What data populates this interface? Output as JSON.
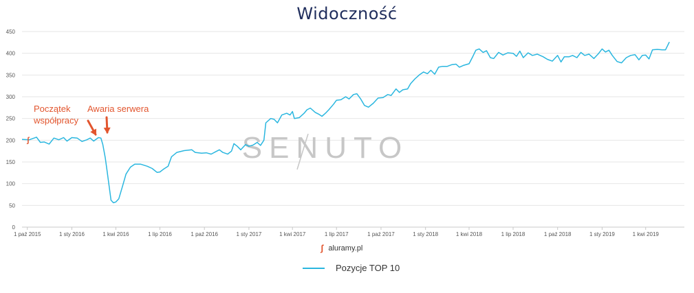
{
  "colors": {
    "series": "#29b6df",
    "grid": "#e6e6e6",
    "annotation": "#e2552e",
    "title": "#1f2d5c",
    "watermark": "#c7c7c7"
  },
  "chart_data": {
    "type": "line",
    "title": "Widoczność",
    "ylim": [
      0,
      450
    ],
    "yticks": [
      0,
      50,
      100,
      150,
      200,
      250,
      300,
      350,
      400,
      450
    ],
    "xlim": [
      "2015-09-20",
      "2019-06-20"
    ],
    "xticks": [
      "1 paź 2015",
      "1 sty 2016",
      "1 kwi 2016",
      "1 lip 2016",
      "1 paź 2016",
      "1 sty 2017",
      "1 kwi 2017",
      "1 lip 2017",
      "1 paź 2017",
      "1 sty 2018",
      "1 kwi 2018",
      "1 lip 2018",
      "1 paź 2018",
      "1 sty 2019",
      "1 kwi 2019"
    ],
    "xtick_dates": [
      "2015-10-01",
      "2016-01-01",
      "2016-04-01",
      "2016-07-01",
      "2016-10-01",
      "2017-01-01",
      "2017-04-01",
      "2017-07-01",
      "2017-10-01",
      "2018-01-01",
      "2018-04-01",
      "2018-07-01",
      "2018-10-01",
      "2019-01-01",
      "2019-04-01"
    ],
    "grid": true,
    "legend_position": "bottom",
    "series": [
      {
        "name": "Pozycje TOP 10",
        "color": "#29b6df",
        "points": [
          [
            "2015-09-20",
            202
          ],
          [
            "2015-10-05",
            201
          ],
          [
            "2015-10-20",
            207
          ],
          [
            "2015-10-28",
            195
          ],
          [
            "2015-11-05",
            196
          ],
          [
            "2015-11-15",
            191
          ],
          [
            "2015-11-25",
            205
          ],
          [
            "2015-12-05",
            201
          ],
          [
            "2015-12-15",
            206
          ],
          [
            "2015-12-22",
            198
          ],
          [
            "2016-01-01",
            206
          ],
          [
            "2016-01-12",
            205
          ],
          [
            "2016-01-22",
            197
          ],
          [
            "2016-02-01",
            201
          ],
          [
            "2016-02-08",
            205
          ],
          [
            "2016-02-15",
            198
          ],
          [
            "2016-02-25",
            206
          ],
          [
            "2016-03-01",
            205
          ],
          [
            "2016-03-05",
            190
          ],
          [
            "2016-03-10",
            160
          ],
          [
            "2016-03-14",
            128
          ],
          [
            "2016-03-18",
            95
          ],
          [
            "2016-03-22",
            62
          ],
          [
            "2016-03-27",
            56
          ],
          [
            "2016-04-01",
            58
          ],
          [
            "2016-04-07",
            65
          ],
          [
            "2016-04-15",
            95
          ],
          [
            "2016-04-22",
            122
          ],
          [
            "2016-05-01",
            138
          ],
          [
            "2016-05-10",
            145
          ],
          [
            "2016-05-22",
            145
          ],
          [
            "2016-06-05",
            140
          ],
          [
            "2016-06-15",
            135
          ],
          [
            "2016-06-25",
            126
          ],
          [
            "2016-07-01",
            127
          ],
          [
            "2016-07-08",
            133
          ],
          [
            "2016-07-18",
            140
          ],
          [
            "2016-07-25",
            162
          ],
          [
            "2016-08-05",
            172
          ],
          [
            "2016-08-20",
            176
          ],
          [
            "2016-09-05",
            178
          ],
          [
            "2016-09-12",
            172
          ],
          [
            "2016-09-25",
            170
          ],
          [
            "2016-10-05",
            171
          ],
          [
            "2016-10-15",
            168
          ],
          [
            "2016-10-25",
            174
          ],
          [
            "2016-11-01",
            178
          ],
          [
            "2016-11-08",
            172
          ],
          [
            "2016-11-18",
            168
          ],
          [
            "2016-11-26",
            175
          ],
          [
            "2016-12-01",
            192
          ],
          [
            "2016-12-08",
            186
          ],
          [
            "2016-12-15",
            178
          ],
          [
            "2016-12-25",
            190
          ],
          [
            "2017-01-01",
            186
          ],
          [
            "2017-01-10",
            189
          ],
          [
            "2017-01-18",
            195
          ],
          [
            "2017-01-25",
            188
          ],
          [
            "2017-02-01",
            200
          ],
          [
            "2017-02-05",
            240
          ],
          [
            "2017-02-15",
            250
          ],
          [
            "2017-02-22",
            248
          ],
          [
            "2017-03-01",
            240
          ],
          [
            "2017-03-10",
            258
          ],
          [
            "2017-03-20",
            262
          ],
          [
            "2017-03-27",
            258
          ],
          [
            "2017-04-01",
            266
          ],
          [
            "2017-04-05",
            250
          ],
          [
            "2017-04-15",
            252
          ],
          [
            "2017-04-25",
            262
          ],
          [
            "2017-05-01",
            270
          ],
          [
            "2017-05-08",
            274
          ],
          [
            "2017-05-18",
            264
          ],
          [
            "2017-05-25",
            260
          ],
          [
            "2017-06-01",
            255
          ],
          [
            "2017-06-08",
            262
          ],
          [
            "2017-06-15",
            270
          ],
          [
            "2017-06-25",
            283
          ],
          [
            "2017-07-01",
            292
          ],
          [
            "2017-07-10",
            293
          ],
          [
            "2017-07-20",
            300
          ],
          [
            "2017-07-27",
            295
          ],
          [
            "2017-08-05",
            305
          ],
          [
            "2017-08-12",
            307
          ],
          [
            "2017-08-20",
            295
          ],
          [
            "2017-08-28",
            280
          ],
          [
            "2017-09-05",
            276
          ],
          [
            "2017-09-15",
            285
          ],
          [
            "2017-09-25",
            297
          ],
          [
            "2017-10-05",
            298
          ],
          [
            "2017-10-15",
            305
          ],
          [
            "2017-10-22",
            303
          ],
          [
            "2017-11-01",
            318
          ],
          [
            "2017-11-08",
            310
          ],
          [
            "2017-11-15",
            316
          ],
          [
            "2017-11-25",
            318
          ],
          [
            "2017-12-01",
            330
          ],
          [
            "2017-12-10",
            341
          ],
          [
            "2017-12-20",
            351
          ],
          [
            "2017-12-28",
            357
          ],
          [
            "2018-01-05",
            353
          ],
          [
            "2018-01-12",
            361
          ],
          [
            "2018-01-20",
            352
          ],
          [
            "2018-01-28",
            368
          ],
          [
            "2018-02-05",
            370
          ],
          [
            "2018-02-15",
            370
          ],
          [
            "2018-02-25",
            374
          ],
          [
            "2018-03-05",
            375
          ],
          [
            "2018-03-12",
            368
          ],
          [
            "2018-03-20",
            372
          ],
          [
            "2018-04-01",
            376
          ],
          [
            "2018-04-08",
            391
          ],
          [
            "2018-04-15",
            407
          ],
          [
            "2018-04-22",
            410
          ],
          [
            "2018-04-30",
            402
          ],
          [
            "2018-05-07",
            406
          ],
          [
            "2018-05-15",
            390
          ],
          [
            "2018-05-22",
            388
          ],
          [
            "2018-06-01",
            402
          ],
          [
            "2018-06-10",
            396
          ],
          [
            "2018-06-20",
            401
          ],
          [
            "2018-07-01",
            400
          ],
          [
            "2018-07-08",
            393
          ],
          [
            "2018-07-15",
            405
          ],
          [
            "2018-07-22",
            390
          ],
          [
            "2018-08-01",
            401
          ],
          [
            "2018-08-10",
            395
          ],
          [
            "2018-08-20",
            398
          ],
          [
            "2018-09-01",
            392
          ],
          [
            "2018-09-10",
            386
          ],
          [
            "2018-09-20",
            382
          ],
          [
            "2018-10-01",
            395
          ],
          [
            "2018-10-08",
            380
          ],
          [
            "2018-10-15",
            392
          ],
          [
            "2018-10-25",
            392
          ],
          [
            "2018-11-01",
            395
          ],
          [
            "2018-11-10",
            390
          ],
          [
            "2018-11-18",
            402
          ],
          [
            "2018-11-26",
            395
          ],
          [
            "2018-12-05",
            398
          ],
          [
            "2018-12-15",
            388
          ],
          [
            "2018-12-25",
            400
          ],
          [
            "2019-01-01",
            410
          ],
          [
            "2019-01-08",
            403
          ],
          [
            "2019-01-15",
            407
          ],
          [
            "2019-01-22",
            395
          ],
          [
            "2019-02-01",
            381
          ],
          [
            "2019-02-10",
            378
          ],
          [
            "2019-02-20",
            390
          ],
          [
            "2019-03-01",
            395
          ],
          [
            "2019-03-10",
            397
          ],
          [
            "2019-03-18",
            385
          ],
          [
            "2019-03-25",
            395
          ],
          [
            "2019-04-01",
            396
          ],
          [
            "2019-04-08",
            387
          ],
          [
            "2019-04-15",
            408
          ],
          [
            "2019-04-25",
            409
          ],
          [
            "2019-05-05",
            408
          ],
          [
            "2019-05-12",
            408
          ],
          [
            "2019-05-20",
            426
          ]
        ]
      }
    ],
    "annotations": [
      {
        "text": "Początek\nwspółpracy",
        "date": "2016-02-08"
      },
      {
        "text": "Awaria serwera",
        "date": "2016-03-01"
      }
    ]
  },
  "source_label": "aluramy.pl",
  "watermark": "SENUTO"
}
